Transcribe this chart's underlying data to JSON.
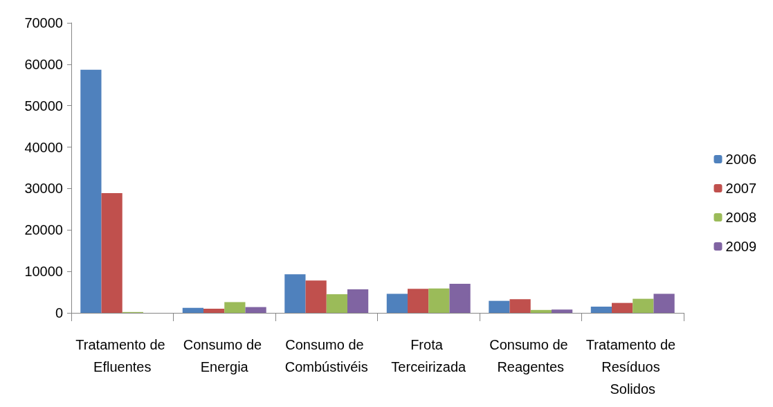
{
  "chart_data": {
    "type": "bar",
    "categories": [
      "Tratamento de Efluentes",
      "Consumo de Energia",
      "Consumo de Combústivéis",
      "Frota Terceirizada",
      "Consumo de Reagentes",
      "Tratamento de Resíduos Solidos"
    ],
    "series": [
      {
        "name": "2006",
        "color": "#4f81bd",
        "values": [
          58700,
          1200,
          9300,
          4600,
          2900,
          1500
        ]
      },
      {
        "name": "2007",
        "color": "#c0504d",
        "values": [
          28900,
          1000,
          7800,
          5800,
          3300,
          2400
        ]
      },
      {
        "name": "2008",
        "color": "#9bbb59",
        "values": [
          200,
          2600,
          4500,
          5900,
          700,
          3400
        ]
      },
      {
        "name": "2009",
        "color": "#8064a2",
        "values": [
          0,
          1400,
          5700,
          7000,
          800,
          4600
        ]
      }
    ],
    "ylim": [
      0,
      70000
    ],
    "yticks": [
      0,
      10000,
      20000,
      30000,
      40000,
      50000,
      60000,
      70000
    ],
    "grid": false,
    "legend": "right"
  }
}
